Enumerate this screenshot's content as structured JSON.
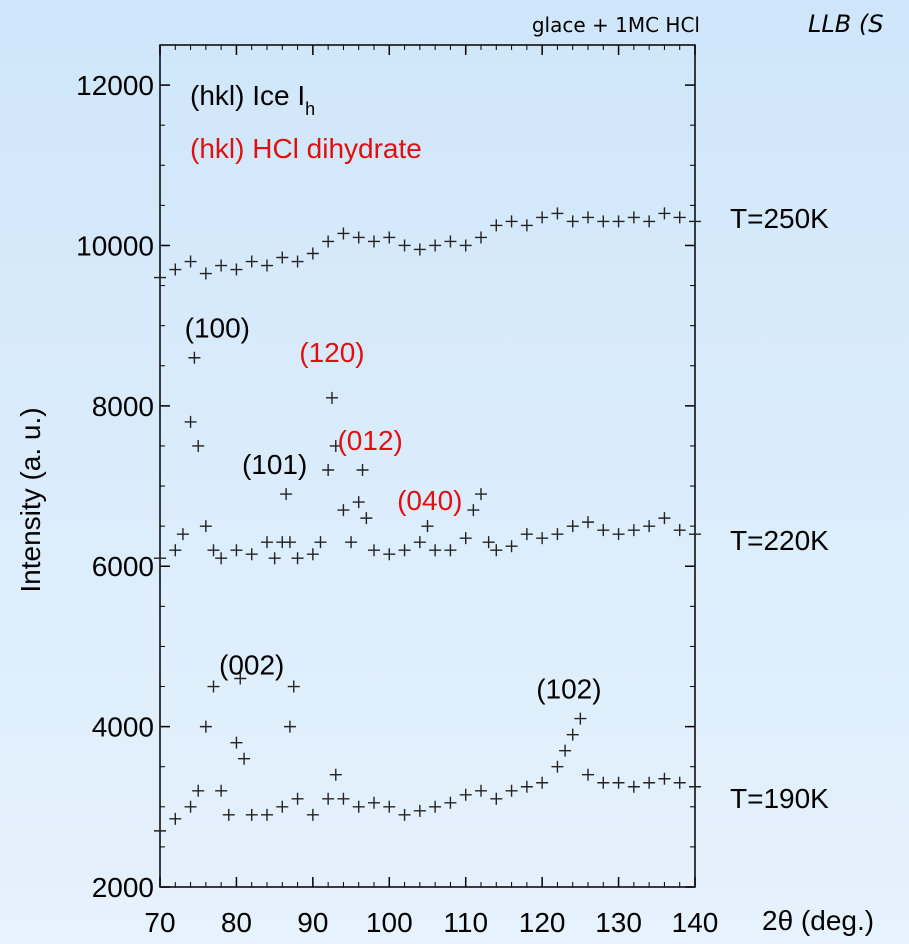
{
  "header": {
    "sample_label": "glace + 1MC HCl",
    "facility_label": "LLB (S"
  },
  "legend": {
    "ice_text": "(hkl) Ice I",
    "ice_subscript": "h",
    "hcl_text": "(hkl) HCl dihydrate"
  },
  "colors": {
    "ice": "#000000",
    "hcl": "#e01010",
    "background_top": "#cfe6fa",
    "background_bottom": "#e6f2fd"
  },
  "chart_data": {
    "type": "scatter",
    "xlabel": "2θ (deg.)",
    "ylabel": "Intensity  (a. u.)",
    "xlim": [
      70,
      140
    ],
    "ylim": [
      2000,
      12500
    ],
    "xticks": [
      70,
      80,
      90,
      100,
      110,
      120,
      130,
      140
    ],
    "yticks": [
      2000,
      4000,
      6000,
      8000,
      10000,
      12000
    ],
    "marker": "plus",
    "series": [
      {
        "name": "T=250K",
        "points": [
          [
            70,
            9600
          ],
          [
            72,
            9700
          ],
          [
            74,
            9800
          ],
          [
            76,
            9650
          ],
          [
            78,
            9750
          ],
          [
            80,
            9700
          ],
          [
            82,
            9800
          ],
          [
            84,
            9750
          ],
          [
            86,
            9850
          ],
          [
            88,
            9800
          ],
          [
            90,
            9900
          ],
          [
            92,
            10050
          ],
          [
            94,
            10150
          ],
          [
            96,
            10100
          ],
          [
            98,
            10050
          ],
          [
            100,
            10100
          ],
          [
            102,
            10000
          ],
          [
            104,
            9950
          ],
          [
            106,
            10000
          ],
          [
            108,
            10050
          ],
          [
            110,
            10000
          ],
          [
            112,
            10100
          ],
          [
            114,
            10250
          ],
          [
            116,
            10300
          ],
          [
            118,
            10250
          ],
          [
            120,
            10350
          ],
          [
            122,
            10400
          ],
          [
            124,
            10300
          ],
          [
            126,
            10350
          ],
          [
            128,
            10300
          ],
          [
            130,
            10300
          ],
          [
            132,
            10350
          ],
          [
            134,
            10300
          ],
          [
            136,
            10400
          ],
          [
            138,
            10350
          ],
          [
            140,
            10300
          ]
        ]
      },
      {
        "name": "T=220K",
        "points": [
          [
            70,
            6100
          ],
          [
            72,
            6200
          ],
          [
            73,
            6400
          ],
          [
            74,
            7800
          ],
          [
            74.5,
            8600
          ],
          [
            75,
            7500
          ],
          [
            76,
            6500
          ],
          [
            77,
            6200
          ],
          [
            78,
            6100
          ],
          [
            80,
            6200
          ],
          [
            82,
            6150
          ],
          [
            84,
            6300
          ],
          [
            85,
            6100
          ],
          [
            86,
            6300
          ],
          [
            86.5,
            6900
          ],
          [
            87,
            6300
          ],
          [
            88,
            6100
          ],
          [
            90,
            6150
          ],
          [
            91,
            6300
          ],
          [
            92,
            7200
          ],
          [
            92.5,
            8100
          ],
          [
            93,
            7500
          ],
          [
            94,
            6700
          ],
          [
            95,
            6300
          ],
          [
            96,
            6800
          ],
          [
            96.5,
            7200
          ],
          [
            97,
            6600
          ],
          [
            98,
            6200
          ],
          [
            100,
            6150
          ],
          [
            102,
            6200
          ],
          [
            104,
            6300
          ],
          [
            105,
            6500
          ],
          [
            106,
            6200
          ],
          [
            108,
            6200
          ],
          [
            110,
            6350
          ],
          [
            111,
            6700
          ],
          [
            112,
            6900
          ],
          [
            113,
            6300
          ],
          [
            114,
            6200
          ],
          [
            116,
            6250
          ],
          [
            118,
            6400
          ],
          [
            120,
            6350
          ],
          [
            122,
            6400
          ],
          [
            124,
            6500
          ],
          [
            126,
            6550
          ],
          [
            128,
            6450
          ],
          [
            130,
            6400
          ],
          [
            132,
            6450
          ],
          [
            134,
            6500
          ],
          [
            136,
            6600
          ],
          [
            138,
            6450
          ],
          [
            140,
            6400
          ]
        ]
      },
      {
        "name": "T=190K",
        "points": [
          [
            70,
            2700
          ],
          [
            72,
            2850
          ],
          [
            74,
            3000
          ],
          [
            75,
            3200
          ],
          [
            76,
            4000
          ],
          [
            77,
            4500
          ],
          [
            78,
            3200
          ],
          [
            79,
            2900
          ],
          [
            80,
            3800
          ],
          [
            80.5,
            4600
          ],
          [
            81,
            3600
          ],
          [
            82,
            2900
          ],
          [
            84,
            2900
          ],
          [
            86,
            3000
          ],
          [
            87,
            4000
          ],
          [
            87.5,
            4500
          ],
          [
            88,
            3100
          ],
          [
            90,
            2900
          ],
          [
            92,
            3100
          ],
          [
            93,
            3400
          ],
          [
            94,
            3100
          ],
          [
            96,
            3000
          ],
          [
            98,
            3050
          ],
          [
            100,
            3000
          ],
          [
            102,
            2900
          ],
          [
            104,
            2950
          ],
          [
            106,
            3000
          ],
          [
            108,
            3050
          ],
          [
            110,
            3150
          ],
          [
            112,
            3200
          ],
          [
            114,
            3100
          ],
          [
            116,
            3200
          ],
          [
            118,
            3250
          ],
          [
            120,
            3300
          ],
          [
            122,
            3500
          ],
          [
            123,
            3700
          ],
          [
            124,
            3900
          ],
          [
            125,
            4100
          ],
          [
            126,
            3400
          ],
          [
            128,
            3300
          ],
          [
            130,
            3300
          ],
          [
            132,
            3250
          ],
          [
            134,
            3300
          ],
          [
            136,
            3350
          ],
          [
            138,
            3300
          ],
          [
            140,
            3250
          ]
        ]
      }
    ],
    "annotations": [
      {
        "text": "(100)",
        "x": 77.5,
        "y": 8850,
        "kind": "ice"
      },
      {
        "text": "(120)",
        "x": 92.5,
        "y": 8550,
        "kind": "hcl"
      },
      {
        "text": "(101)",
        "x": 85.0,
        "y": 7150,
        "kind": "ice"
      },
      {
        "text": "(012)",
        "x": 97.5,
        "y": 7450,
        "kind": "hcl"
      },
      {
        "text": "(040)",
        "x": 105.3,
        "y": 6700,
        "kind": "hcl"
      },
      {
        "text": "(002)",
        "x": 82.0,
        "y": 4650,
        "kind": "ice"
      },
      {
        "text": "(102)",
        "x": 123.5,
        "y": 4350,
        "kind": "ice"
      }
    ]
  }
}
